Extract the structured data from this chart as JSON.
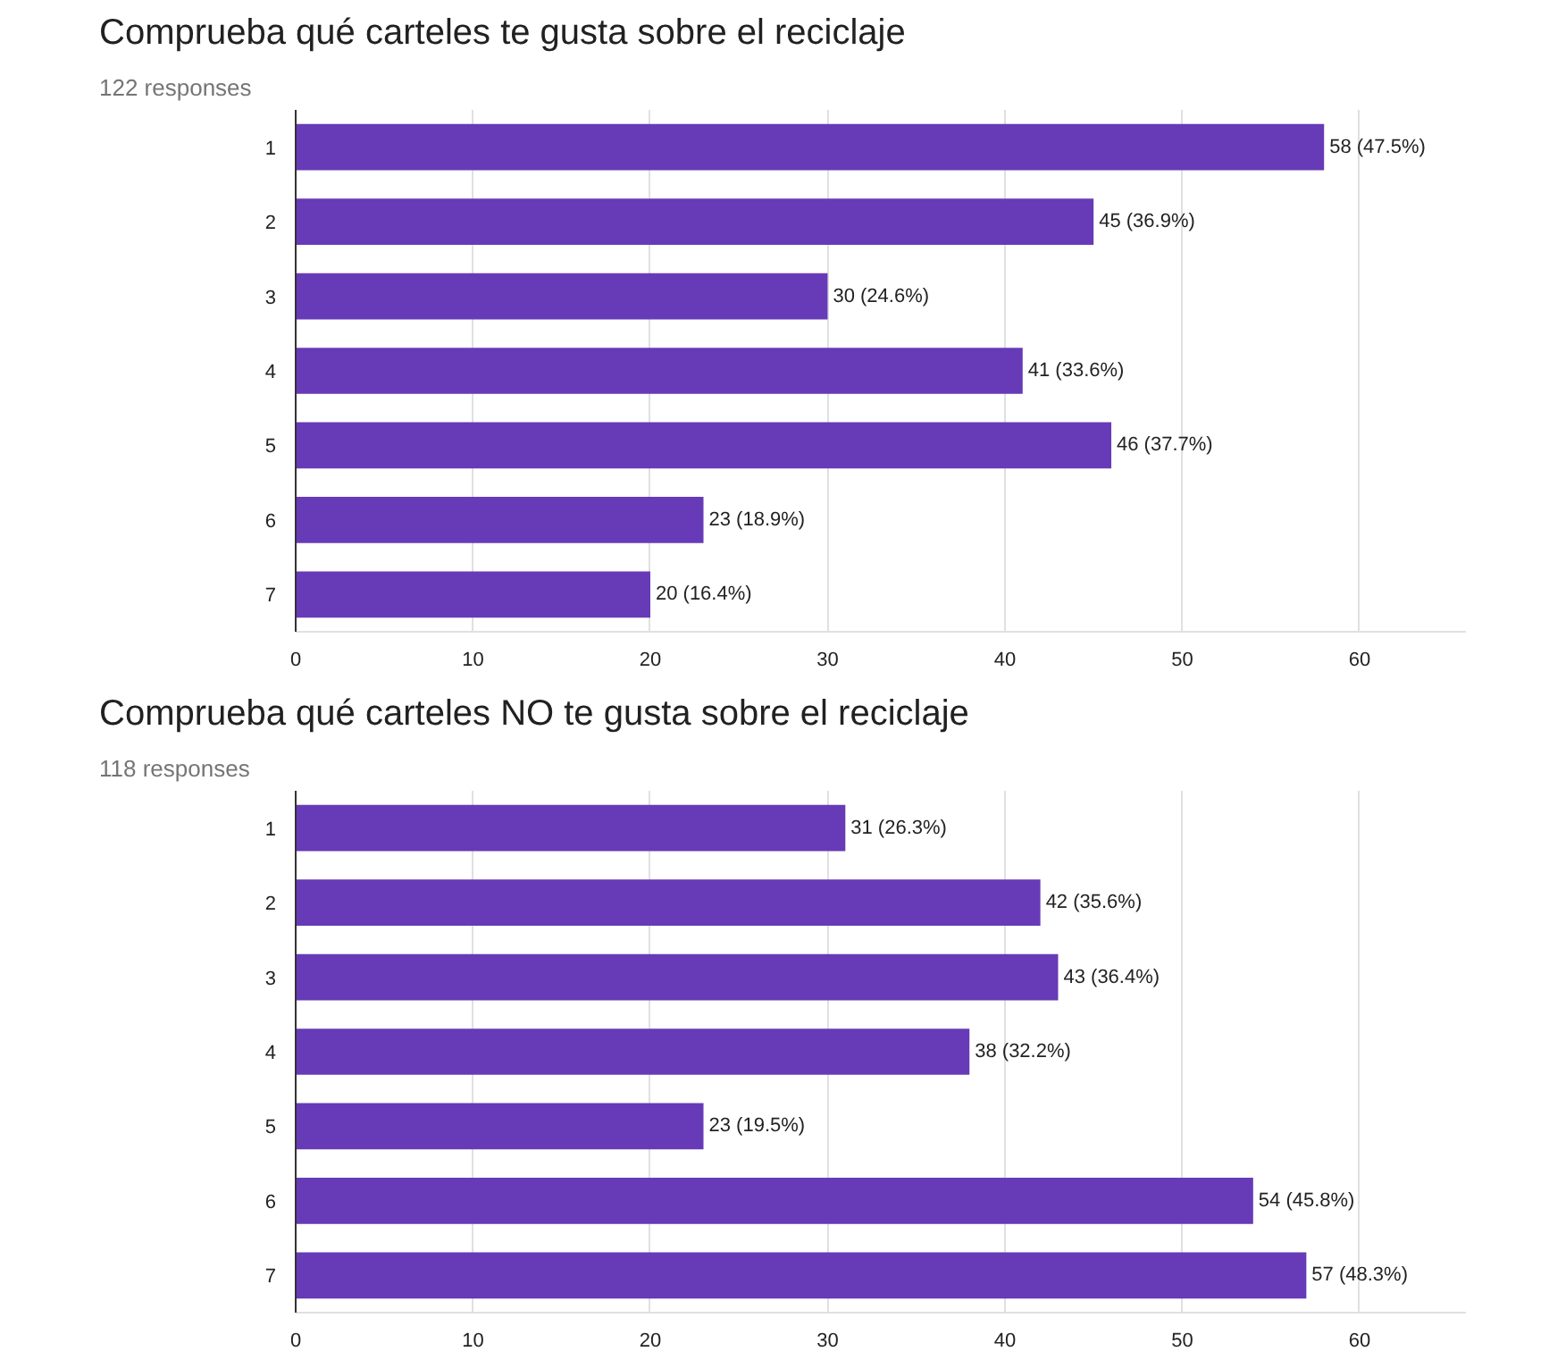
{
  "chart_data": [
    {
      "type": "bar",
      "orientation": "horizontal",
      "title": "Comprueba qué carteles te gusta sobre el reciclaje",
      "subtitle": "122 responses",
      "categories": [
        "1",
        "2",
        "3",
        "4",
        "5",
        "6",
        "7"
      ],
      "values": [
        58,
        45,
        30,
        41,
        46,
        23,
        20
      ],
      "value_labels": [
        "58 (47.5%)",
        "45 (36.9%)",
        "30 (24.6%)",
        "41 (33.6%)",
        "46 (37.7%)",
        "23 (18.9%)",
        "20 (16.4%)"
      ],
      "color": "#673ab7",
      "xlim": [
        0,
        66
      ],
      "xticks": [
        0,
        10,
        20,
        30,
        40,
        50,
        60
      ],
      "grid": "x"
    },
    {
      "type": "bar",
      "orientation": "horizontal",
      "title": "Comprueba qué carteles NO te gusta sobre el reciclaje",
      "subtitle": "118 responses",
      "categories": [
        "1",
        "2",
        "3",
        "4",
        "5",
        "6",
        "7"
      ],
      "values": [
        31,
        42,
        43,
        38,
        23,
        54,
        57
      ],
      "value_labels": [
        "31 (26.3%)",
        "42 (35.6%)",
        "43 (36.4%)",
        "38 (32.2%)",
        "23 (19.5%)",
        "54 (45.8%)",
        "57 (48.3%)"
      ],
      "color": "#673ab7",
      "xlim": [
        0,
        66
      ],
      "xticks": [
        0,
        10,
        20,
        30,
        40,
        50,
        60
      ],
      "grid": "x"
    }
  ]
}
